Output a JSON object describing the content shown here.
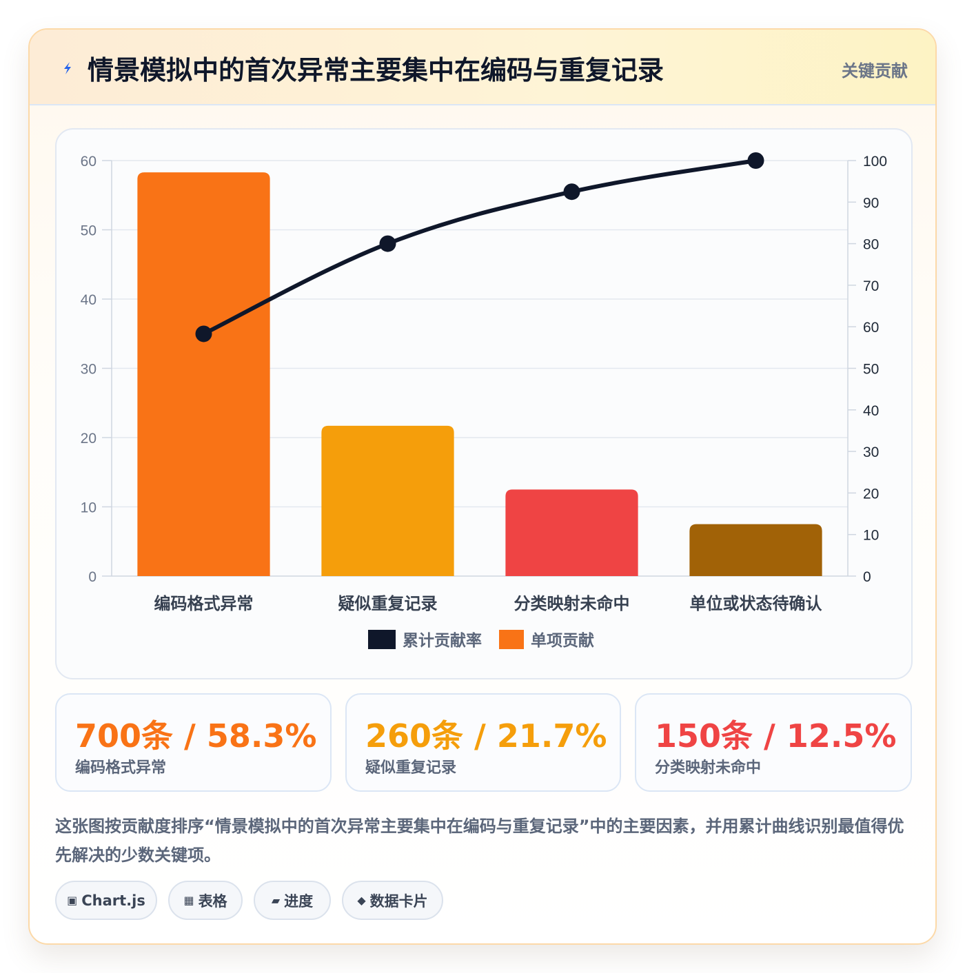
{
  "header": {
    "title": "情景模拟中的首次异常主要集中在编码与重复记录",
    "tag": "关键贡献"
  },
  "chart_data": {
    "type": "bar",
    "categories": [
      "编码格式异常",
      "疑似重复记录",
      "分类映射未命中",
      "单位或状态待确认"
    ],
    "series": [
      {
        "name": "单项贡献",
        "type": "bar",
        "axis": "left",
        "values": [
          58.3,
          21.7,
          12.5,
          7.5
        ],
        "colors": [
          "#f97316",
          "#f59e0b",
          "#ef4444",
          "#a16207"
        ]
      },
      {
        "name": "累计贡献率",
        "type": "line",
        "axis": "right",
        "values": [
          58.3,
          80.0,
          92.5,
          100.0
        ],
        "color": "#0f172a"
      }
    ],
    "left_axis": {
      "ylim": [
        0,
        60
      ],
      "ticks": [
        "0",
        "10",
        "20",
        "30",
        "40",
        "50",
        "60"
      ]
    },
    "right_axis": {
      "ylim": [
        0,
        100
      ],
      "ticks": [
        "0",
        "10",
        "20",
        "30",
        "40",
        "50",
        "60",
        "70",
        "80",
        "90",
        "100"
      ]
    },
    "legend": [
      "累计贡献率",
      "单项贡献"
    ],
    "legend_position": "bottom",
    "grid": true
  },
  "stats": [
    {
      "value": "700条 / 58.3%",
      "label": "编码格式异常",
      "color": "#f97316"
    },
    {
      "value": "260条 / 21.7%",
      "label": "疑似重复记录",
      "color": "#f59e0b"
    },
    {
      "value": "150条 / 12.5%",
      "label": "分类映射未命中",
      "color": "#ef4444"
    }
  ],
  "description": "这张图按贡献度排序“情景模拟中的首次异常主要集中在编码与重复记录”中的主要因素，并用累计曲线识别最值得优先解决的少数关键项。",
  "chips": [
    {
      "icon": "▣",
      "label": "Chart.js"
    },
    {
      "icon": "▦",
      "label": "表格"
    },
    {
      "icon": "▰",
      "label": "进度"
    },
    {
      "icon": "◆",
      "label": "数据卡片"
    }
  ]
}
